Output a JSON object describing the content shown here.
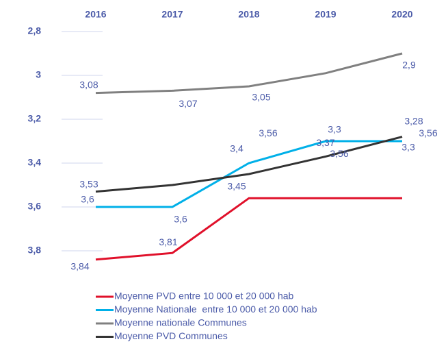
{
  "chart_data": {
    "type": "line",
    "categories": [
      "2016",
      "2017",
      "2018",
      "2019",
      "2020"
    ],
    "ylim": [
      2.8,
      3.8
    ],
    "inverted": true,
    "yticks": [
      {
        "value": 2.8,
        "label": "2,8"
      },
      3,
      {
        "value": 3.2,
        "label": "3,2"
      },
      {
        "value": 3.4,
        "label": "3,4"
      },
      {
        "value": 3.6,
        "label": "3,6"
      },
      {
        "value": 3.8,
        "label": "3,8"
      }
    ],
    "grid": true,
    "legend": "bottom",
    "series": [
      {
        "name": "Moyenne PVD entre 10 000 et 20 000 hab",
        "color": "#e0102a",
        "values": [
          3.84,
          3.81,
          3.56,
          3.56,
          3.56
        ],
        "value_labels": [
          "3,84",
          "3,81",
          "3,56",
          "3,56",
          "3,56"
        ]
      },
      {
        "name": "Moyenne Nationale  entre 10 000 et 20 000 hab",
        "color": "#00b0e8",
        "values": [
          3.6,
          3.6,
          3.4,
          3.3,
          3.3
        ],
        "value_labels": [
          "3,6",
          "3,6",
          "3,4",
          "3,3",
          "3,3"
        ]
      },
      {
        "name": "Moyenne nationale Communes",
        "color": "#808080",
        "values": [
          3.08,
          3.07,
          3.05,
          2.99,
          2.9
        ],
        "value_labels": [
          "3,08",
          "3,07",
          "3,05",
          null,
          "2,9"
        ]
      },
      {
        "name": "Moyenne PVD Communes",
        "color": "#333333",
        "values": [
          3.53,
          3.5,
          3.45,
          3.37,
          3.28
        ],
        "value_labels": [
          "3,53",
          null,
          "3,45",
          "3,37",
          "3,28"
        ]
      }
    ]
  }
}
